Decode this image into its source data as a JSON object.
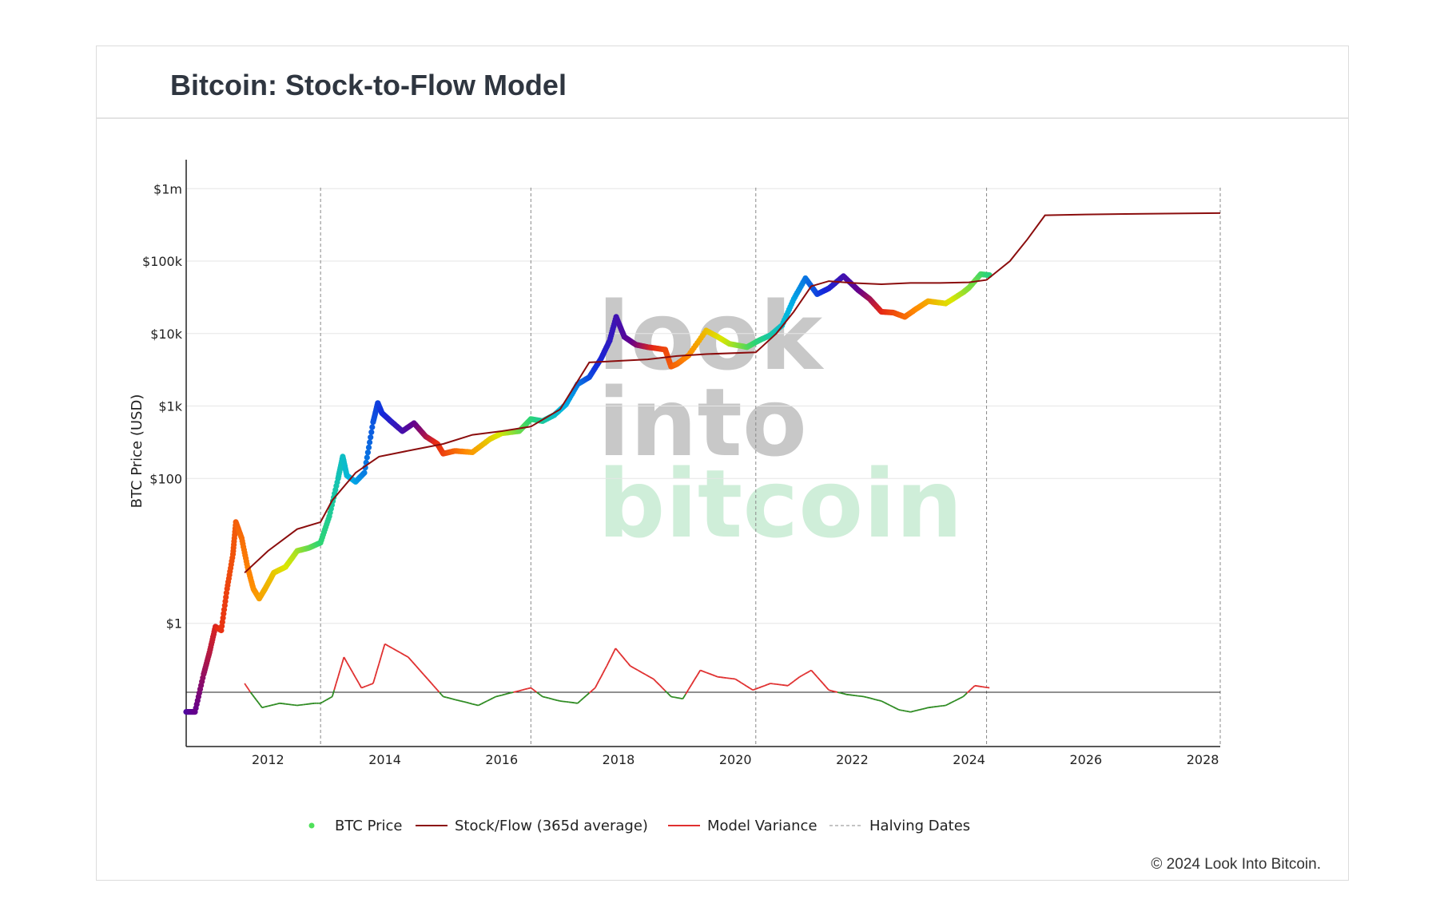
{
  "page": {
    "title": "Bitcoin: Stock-to-Flow Model",
    "copyright": "© 2024 Look Into Bitcoin.",
    "watermark": [
      "look",
      "into",
      "bitcoin"
    ]
  },
  "colors": {
    "model_line": "#8b0d0d",
    "variance_positive": "#e03030",
    "variance_negative": "#2e8b22",
    "halving_line": "#888888",
    "watermark_gray": "#c8c8c8",
    "watermark_green": "#cfeed9"
  },
  "chart_data": {
    "type": "line",
    "scale": "log",
    "ylabel": "BTC Price (USD)",
    "y_ticks": [
      {
        "value": 1,
        "label": "$1"
      },
      {
        "value": 100,
        "label": "$100"
      },
      {
        "value": 1000,
        "label": "$1k"
      },
      {
        "value": 10000,
        "label": "$10k"
      },
      {
        "value": 100000,
        "label": "$100k"
      },
      {
        "value": 1000000,
        "label": "$1m"
      }
    ],
    "x_ticks": [
      "2012",
      "2014",
      "2016",
      "2018",
      "2020",
      "2022",
      "2024",
      "2026",
      "2028"
    ],
    "xlim": [
      2010.6,
      2028.3
    ],
    "ylim_log10": [
      -1.7,
      6.4
    ],
    "halving_dates": [
      2012.9,
      2016.5,
      2020.35,
      2024.3
    ],
    "legend": [
      "BTC Price",
      "Stock/Flow (365d average)",
      "Model Variance",
      "Halving Dates"
    ],
    "series": [
      {
        "name": "BTC Price",
        "x": [
          2010.6,
          2010.75,
          2010.9,
          2011.0,
          2011.1,
          2011.2,
          2011.3,
          2011.4,
          2011.45,
          2011.55,
          2011.65,
          2011.75,
          2011.85,
          2011.95,
          2012.1,
          2012.3,
          2012.5,
          2012.7,
          2012.9,
          2013.05,
          2013.2,
          2013.28,
          2013.35,
          2013.5,
          2013.65,
          2013.8,
          2013.88,
          2013.95,
          2014.1,
          2014.3,
          2014.5,
          2014.7,
          2014.9,
          2015.0,
          2015.2,
          2015.5,
          2015.8,
          2016.0,
          2016.3,
          2016.5,
          2016.7,
          2016.9,
          2017.1,
          2017.3,
          2017.5,
          2017.7,
          2017.85,
          2017.96,
          2018.1,
          2018.3,
          2018.5,
          2018.8,
          2018.9,
          2019.0,
          2019.2,
          2019.5,
          2019.7,
          2019.9,
          2020.2,
          2020.4,
          2020.6,
          2020.8,
          2021.0,
          2021.2,
          2021.4,
          2021.6,
          2021.85,
          2022.1,
          2022.3,
          2022.5,
          2022.7,
          2022.9,
          2023.1,
          2023.3,
          2023.6,
          2023.9,
          2024.0,
          2024.2,
          2024.35
        ],
        "y": [
          0.06,
          0.06,
          0.2,
          0.4,
          0.9,
          0.8,
          3,
          9,
          25,
          15,
          6,
          3,
          2.2,
          3,
          5,
          6,
          10,
          11,
          13,
          30,
          100,
          200,
          110,
          90,
          120,
          600,
          1100,
          800,
          620,
          450,
          580,
          380,
          300,
          220,
          240,
          230,
          350,
          420,
          450,
          660,
          620,
          750,
          1050,
          2000,
          2500,
          4500,
          8000,
          17000,
          9000,
          7000,
          6500,
          6000,
          3500,
          3800,
          5000,
          11000,
          9000,
          7200,
          6500,
          8000,
          9500,
          13000,
          30000,
          58000,
          35000,
          42000,
          62000,
          40000,
          30000,
          20000,
          19500,
          17000,
          22000,
          28000,
          26000,
          37000,
          43000,
          66000,
          64000
        ],
        "color_sequence": "rainbow cycle between halvings (cyan-blue-purple-red-orange-yellow-green)"
      },
      {
        "name": "Stock/Flow (365d average)",
        "x": [
          2011.6,
          2012.0,
          2012.5,
          2012.9,
          2013.1,
          2013.5,
          2013.9,
          2014.5,
          2015.0,
          2015.5,
          2016.0,
          2016.5,
          2017.0,
          2017.5,
          2018.0,
          2018.5,
          2019.0,
          2019.5,
          2020.35,
          2020.7,
          2021.0,
          2021.3,
          2021.6,
          2022.0,
          2022.5,
          2023.0,
          2023.5,
          2024.0,
          2024.3,
          2024.7,
          2025.0,
          2025.3,
          2026.0,
          2027.0,
          2028.3
        ],
        "y": [
          5,
          10,
          20,
          25,
          50,
          120,
          200,
          250,
          300,
          400,
          450,
          520,
          900,
          4000,
          4200,
          4400,
          4900,
          5200,
          5500,
          10000,
          20000,
          45000,
          53000,
          50000,
          48000,
          50000,
          50000,
          51000,
          55000,
          100000,
          200000,
          430000,
          440000,
          450000,
          460000
        ]
      },
      {
        "name": "Model Variance",
        "x": [
          2011.6,
          2011.7,
          2011.9,
          2012.2,
          2012.5,
          2012.8,
          2012.9,
          2013.1,
          2013.3,
          2013.6,
          2013.8,
          2014.0,
          2014.4,
          2014.8,
          2015.0,
          2015.3,
          2015.6,
          2015.9,
          2016.2,
          2016.5,
          2016.7,
          2017.0,
          2017.3,
          2017.6,
          2017.8,
          2017.95,
          2018.2,
          2018.6,
          2018.9,
          2019.1,
          2019.4,
          2019.7,
          2020.0,
          2020.3,
          2020.6,
          2020.9,
          2021.1,
          2021.3,
          2021.6,
          2021.9,
          2022.2,
          2022.5,
          2022.8,
          2023.0,
          2023.3,
          2023.6,
          2023.9,
          2024.1,
          2024.35
        ],
        "y": [
          0.2,
          0.0,
          -0.35,
          -0.25,
          -0.3,
          -0.25,
          -0.25,
          -0.1,
          0.8,
          0.1,
          0.2,
          1.1,
          0.8,
          0.2,
          -0.1,
          -0.2,
          -0.3,
          -0.1,
          0.0,
          0.1,
          -0.1,
          -0.2,
          -0.25,
          0.1,
          0.6,
          1.0,
          0.6,
          0.3,
          -0.1,
          -0.15,
          0.5,
          0.35,
          0.3,
          0.05,
          0.2,
          0.15,
          0.35,
          0.5,
          0.05,
          -0.05,
          -0.1,
          -0.2,
          -0.4,
          -0.45,
          -0.35,
          -0.3,
          -0.1,
          0.15,
          0.1
        ]
      }
    ]
  }
}
